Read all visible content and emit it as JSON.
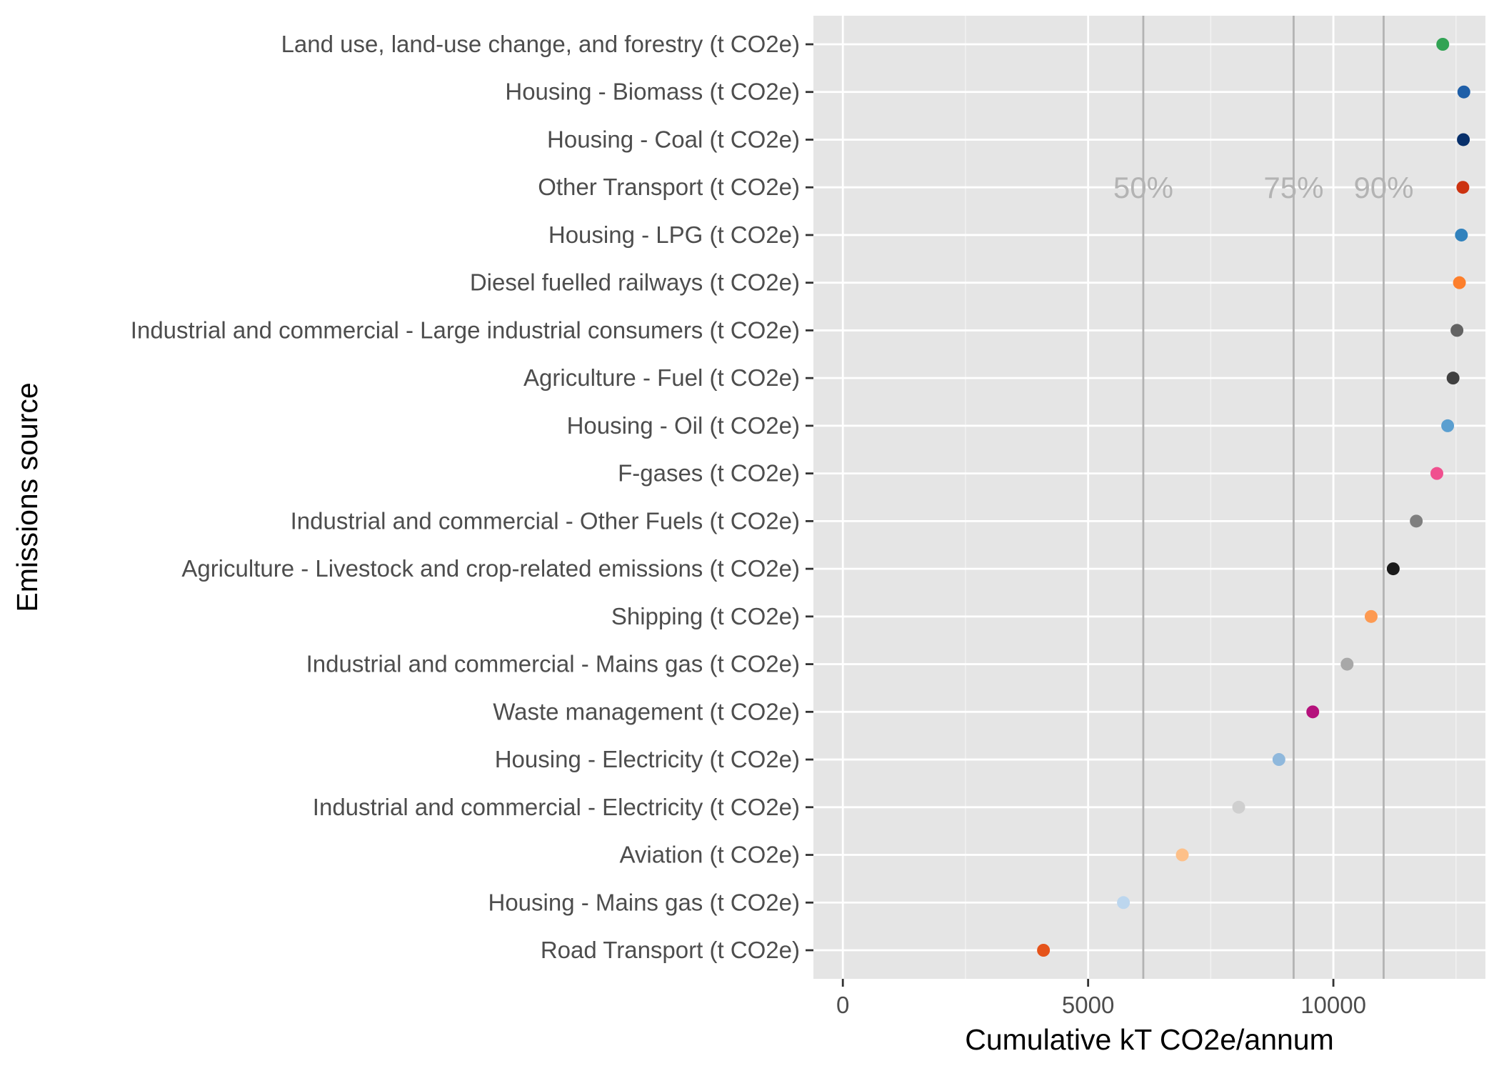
{
  "chart_data": {
    "type": "scatter",
    "title": "",
    "xlabel": "Cumulative kT CO2e/annum",
    "ylabel": "Emissions source",
    "xlim": [
      -600,
      13100
    ],
    "x_ticks": [
      0,
      5000,
      10000
    ],
    "grid": true,
    "reference_lines": [
      {
        "label": "50%",
        "x": 6125
      },
      {
        "label": "75%",
        "x": 9190
      },
      {
        "label": "90%",
        "x": 11025
      }
    ],
    "categories": [
      "Land use, land-use change, and forestry (t CO2e)",
      "Housing - Biomass (t CO2e)",
      "Housing - Coal (t CO2e)",
      "Other Transport (t CO2e)",
      "Housing - LPG (t CO2e)",
      "Diesel fuelled railways (t CO2e)",
      "Industrial and commercial - Large industrial consumers (t CO2e)",
      "Agriculture - Fuel (t CO2e)",
      "Housing - Oil (t CO2e)",
      "F-gases (t CO2e)",
      "Industrial and commercial - Other Fuels (t CO2e)",
      "Agriculture - Livestock and crop-related emissions (t CO2e)",
      "Shipping (t CO2e)",
      "Industrial and commercial - Mains gas (t CO2e)",
      "Waste management (t CO2e)",
      "Housing - Electricity (t CO2e)",
      "Industrial and commercial - Electricity (t CO2e)",
      "Aviation (t CO2e)",
      "Housing - Mains gas (t CO2e)",
      "Road Transport (t CO2e)"
    ],
    "values": [
      12230,
      12660,
      12650,
      12640,
      12610,
      12570,
      12520,
      12440,
      12330,
      12110,
      11690,
      11220,
      10770,
      10280,
      9580,
      8890,
      8070,
      6920,
      5720,
      4090
    ],
    "colors": [
      "#31a354",
      "#1f5fa8",
      "#08306b",
      "#cc3311",
      "#3182bd",
      "#fd7f2c",
      "#636363",
      "#404040",
      "#5b9fd0",
      "#f0508f",
      "#7f7f7f",
      "#1a1a1a",
      "#fd9a52",
      "#a8a8a8",
      "#b5117c",
      "#8fb8dc",
      "#cfcfcf",
      "#fdc089",
      "#bcd6ee",
      "#e5531a"
    ]
  }
}
